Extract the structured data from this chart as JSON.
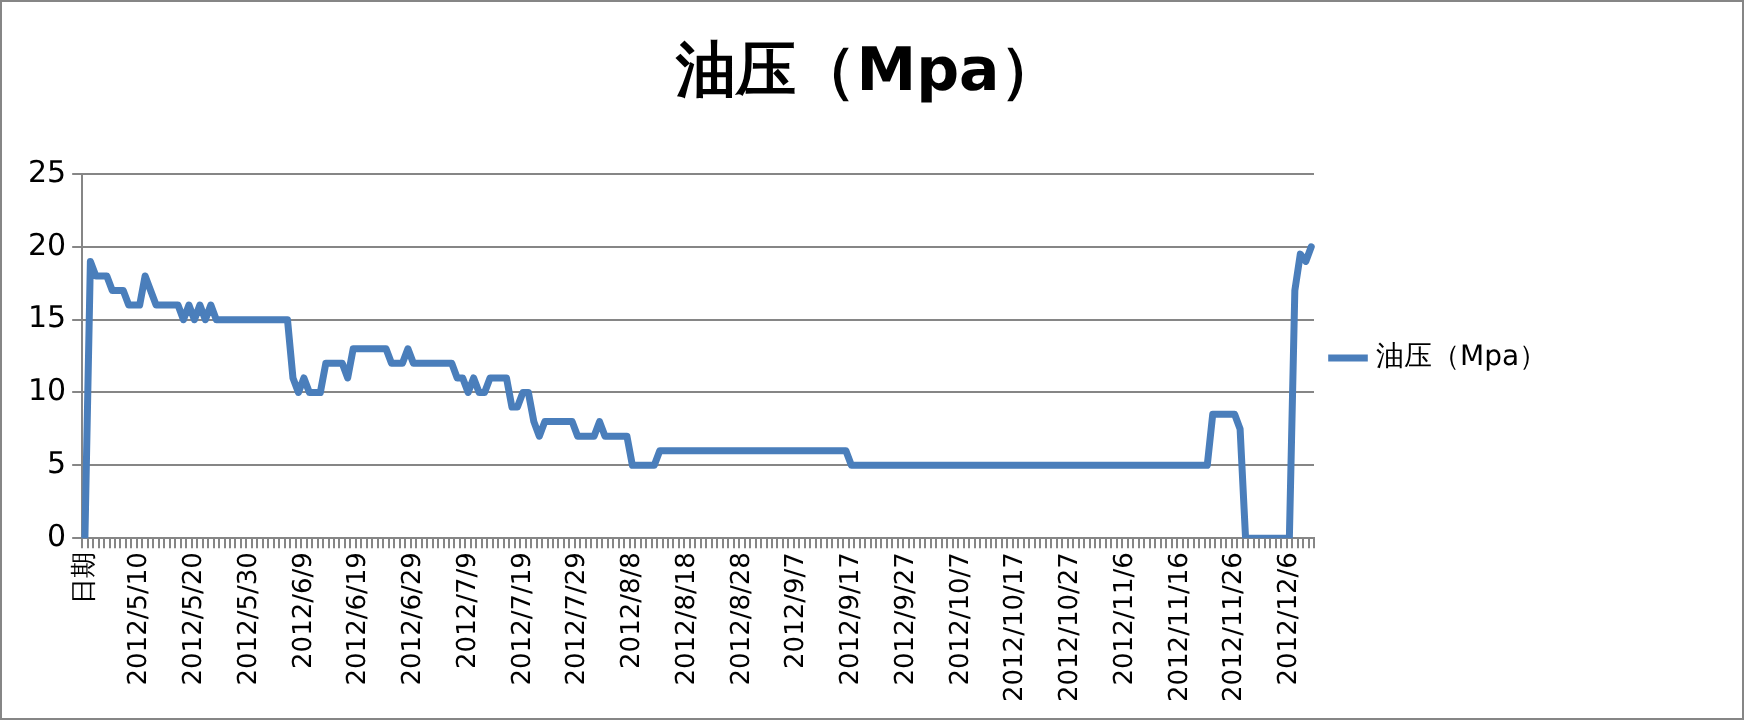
{
  "chart_data": {
    "type": "line",
    "title": "油压（Mpa）",
    "categories": [
      "日期",
      null,
      null,
      null,
      null,
      null,
      null,
      null,
      null,
      null,
      "2012/5/10",
      null,
      null,
      null,
      null,
      null,
      null,
      null,
      null,
      null,
      "2012/5/20",
      null,
      null,
      null,
      null,
      null,
      null,
      null,
      null,
      null,
      "2012/5/30",
      null,
      null,
      null,
      null,
      null,
      null,
      null,
      null,
      null,
      "2012/6/9",
      null,
      null,
      null,
      null,
      null,
      null,
      null,
      null,
      null,
      "2012/6/19",
      null,
      null,
      null,
      null,
      null,
      null,
      null,
      null,
      null,
      "2012/6/29",
      null,
      null,
      null,
      null,
      null,
      null,
      null,
      null,
      null,
      "2012/7/9",
      null,
      null,
      null,
      null,
      null,
      null,
      null,
      null,
      null,
      "2012/7/19",
      null,
      null,
      null,
      null,
      null,
      null,
      null,
      null,
      null,
      "2012/7/29",
      null,
      null,
      null,
      null,
      null,
      null,
      null,
      null,
      null,
      "2012/8/8",
      null,
      null,
      null,
      null,
      null,
      null,
      null,
      null,
      null,
      "2012/8/18",
      null,
      null,
      null,
      null,
      null,
      null,
      null,
      null,
      null,
      "2012/8/28",
      null,
      null,
      null,
      null,
      null,
      null,
      null,
      null,
      null,
      "2012/9/7",
      null,
      null,
      null,
      null,
      null,
      null,
      null,
      null,
      null,
      "2012/9/17",
      null,
      null,
      null,
      null,
      null,
      null,
      null,
      null,
      null,
      "2012/9/27",
      null,
      null,
      null,
      null,
      null,
      null,
      null,
      null,
      null,
      "2012/10/7",
      null,
      null,
      null,
      null,
      null,
      null,
      null,
      null,
      null,
      "2012/10/17",
      null,
      null,
      null,
      null,
      null,
      null,
      null,
      null,
      null,
      "2012/10/27",
      null,
      null,
      null,
      null,
      null,
      null,
      null,
      null,
      null,
      "2012/11/6",
      null,
      null,
      null,
      null,
      null,
      null,
      null,
      null,
      null,
      "2012/11/16",
      null,
      null,
      null,
      null,
      null,
      null,
      null,
      null,
      null,
      "2012/11/26",
      null,
      null,
      null,
      null,
      null,
      null,
      null,
      null,
      null,
      "2012/12/6",
      null,
      null,
      null,
      null
    ],
    "series": [
      {
        "name": "油压（Mpa）",
        "color": "#4a7ebb",
        "values": [
          0,
          19,
          18,
          18,
          18,
          17,
          17,
          17,
          16,
          16,
          16,
          18,
          17,
          16,
          16,
          16,
          16,
          16,
          15,
          16,
          15,
          16,
          15,
          16,
          15,
          15,
          15,
          15,
          15,
          15,
          15,
          15,
          15,
          15,
          15,
          15,
          15,
          15,
          11,
          10,
          11,
          10,
          10,
          10,
          12,
          12,
          12,
          12,
          11,
          13,
          13,
          13,
          13,
          13,
          13,
          13,
          12,
          12,
          12,
          13,
          12,
          12,
          12,
          12,
          12,
          12,
          12,
          12,
          11,
          11,
          10,
          11,
          10,
          10,
          11,
          11,
          11,
          11,
          9,
          9,
          10,
          10,
          8,
          7,
          8,
          8,
          8,
          8,
          8,
          8,
          7,
          7,
          7,
          7,
          8,
          7,
          7,
          7,
          7,
          7,
          5,
          5,
          5,
          5,
          5,
          6,
          6,
          6,
          6,
          6,
          6,
          6,
          6,
          6,
          6,
          6,
          6,
          6,
          6,
          6,
          6,
          6,
          6,
          6,
          6,
          6,
          6,
          6,
          6,
          6,
          6,
          6,
          6,
          6,
          6,
          6,
          6,
          6,
          6,
          6,
          5,
          5,
          5,
          5,
          5,
          5,
          5,
          5,
          5,
          5,
          5,
          5,
          5,
          5,
          5,
          5,
          5,
          5,
          5,
          5,
          5,
          5,
          5,
          5,
          5,
          5,
          5,
          5,
          5,
          5,
          5,
          5,
          5,
          5,
          5,
          5,
          5,
          5,
          5,
          5,
          5,
          5,
          5,
          5,
          5,
          5,
          5,
          5,
          5,
          5,
          5,
          5,
          5,
          5,
          5,
          5,
          5,
          5,
          5,
          5,
          5,
          5,
          5,
          5,
          5,
          5,
          8.5,
          8.5,
          8.5,
          8.5,
          8.5,
          7.5,
          0,
          0,
          0,
          0,
          0,
          0,
          0,
          0,
          0,
          17,
          19.5,
          19,
          20
        ]
      }
    ],
    "ylim": [
      0,
      25
    ],
    "yticks": [
      0,
      5,
      10,
      15,
      20,
      25
    ],
    "grid": "y",
    "legend": "right",
    "marker": "none",
    "line_style": "solid"
  }
}
